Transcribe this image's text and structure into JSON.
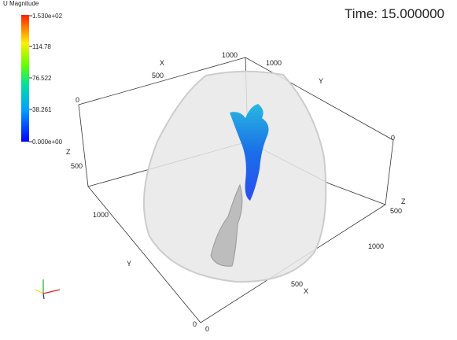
{
  "time_label": "Time: 15.000000",
  "colorbar": {
    "title": "U Magnitude",
    "labels": [
      "1.530e+02",
      "114.78",
      "76.522",
      "38.261",
      "0.000e+00"
    ]
  },
  "axis_labels": [
    "1000",
    "X",
    "500",
    "0",
    "1000",
    "Y",
    "Z",
    "500",
    "1000",
    "Y",
    "0",
    "Z",
    "500",
    "1000",
    "500",
    "X",
    "0",
    "0"
  ]
}
